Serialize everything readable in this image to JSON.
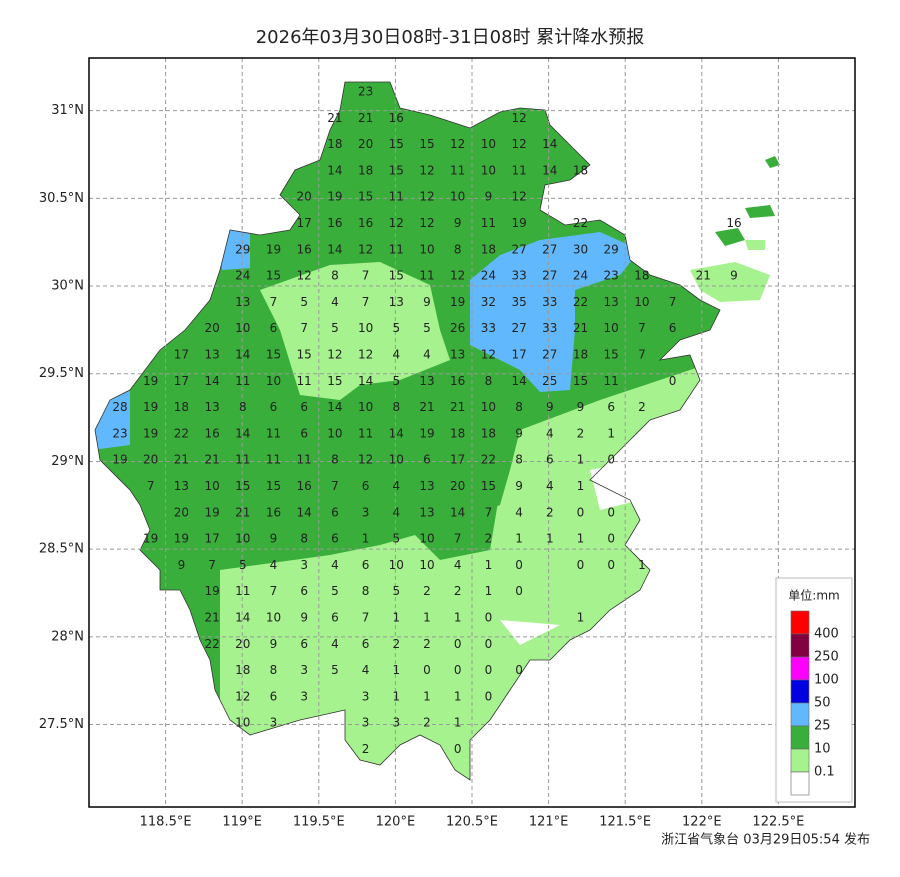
{
  "title": "2026年03月30日08时-31日08时 累计降水预报",
  "footer": "浙江省气象台 03月29日05:54 发布",
  "axes": {
    "xlim": [
      118.0,
      123.0
    ],
    "ylim": [
      27.03,
      31.3
    ],
    "xticks": [
      {
        "value": 118.5,
        "label": "118.5°E"
      },
      {
        "value": 119,
        "label": "119°E"
      },
      {
        "value": 119.5,
        "label": "119.5°E"
      },
      {
        "value": 120,
        "label": "120°E"
      },
      {
        "value": 120.5,
        "label": "120.5°E"
      },
      {
        "value": 121,
        "label": "121°E"
      },
      {
        "value": 121.5,
        "label": "121.5°E"
      },
      {
        "value": 122,
        "label": "122°E"
      },
      {
        "value": 122.5,
        "label": "122.5°E"
      }
    ],
    "yticks": [
      {
        "value": 27.5,
        "label": "27.5°N"
      },
      {
        "value": 28,
        "label": "28°N"
      },
      {
        "value": 28.5,
        "label": "28.5°N"
      },
      {
        "value": 29,
        "label": "29°N"
      },
      {
        "value": 29.5,
        "label": "29.5°N"
      },
      {
        "value": 30,
        "label": "30°N"
      },
      {
        "value": 30.5,
        "label": "30.5°N"
      },
      {
        "value": 31,
        "label": "31°N"
      }
    ]
  },
  "rows": [
    [
      null,
      null,
      null,
      null,
      null,
      null,
      null,
      null,
      23,
      null,
      null,
      null,
      null,
      null,
      null,
      null,
      null,
      null,
      null,
      null,
      null
    ],
    [
      null,
      null,
      null,
      null,
      null,
      null,
      null,
      21,
      21,
      16,
      null,
      null,
      null,
      12,
      null,
      null,
      null,
      null,
      null,
      null,
      null
    ],
    [
      null,
      null,
      null,
      null,
      null,
      null,
      null,
      18,
      20,
      15,
      15,
      12,
      10,
      12,
      14,
      null,
      null,
      null,
      null,
      null,
      null
    ],
    [
      null,
      null,
      null,
      null,
      null,
      null,
      null,
      14,
      18,
      15,
      12,
      11,
      10,
      11,
      14,
      18,
      null,
      null,
      null,
      null,
      null
    ],
    [
      null,
      null,
      null,
      null,
      null,
      null,
      20,
      19,
      15,
      11,
      12,
      10,
      9,
      12,
      null,
      null,
      null,
      null,
      null,
      null,
      null
    ],
    [
      null,
      null,
      null,
      null,
      null,
      null,
      17,
      16,
      16,
      12,
      12,
      9,
      11,
      19,
      null,
      22,
      null,
      null,
      null,
      null,
      16
    ],
    [
      null,
      null,
      null,
      null,
      29,
      19,
      16,
      14,
      12,
      11,
      10,
      8,
      18,
      27,
      27,
      30,
      29,
      null,
      null,
      null,
      null
    ],
    [
      null,
      null,
      null,
      null,
      24,
      15,
      12,
      8,
      7,
      15,
      11,
      12,
      24,
      33,
      27,
      24,
      23,
      18,
      null,
      21,
      9
    ],
    [
      null,
      null,
      null,
      null,
      13,
      7,
      5,
      4,
      7,
      13,
      9,
      19,
      32,
      35,
      33,
      22,
      13,
      10,
      7,
      null,
      null
    ],
    [
      null,
      null,
      null,
      20,
      10,
      6,
      7,
      5,
      10,
      5,
      5,
      26,
      33,
      27,
      33,
      21,
      10,
      7,
      6,
      null,
      null
    ],
    [
      null,
      null,
      17,
      13,
      14,
      15,
      15,
      12,
      12,
      4,
      4,
      13,
      12,
      17,
      27,
      18,
      15,
      7,
      null,
      null,
      null
    ],
    [
      null,
      19,
      17,
      14,
      11,
      10,
      11,
      15,
      14,
      5,
      13,
      16,
      8,
      14,
      25,
      15,
      11,
      null,
      0,
      null,
      null
    ],
    [
      28,
      19,
      18,
      13,
      8,
      6,
      6,
      14,
      10,
      8,
      21,
      21,
      10,
      8,
      9,
      9,
      6,
      2,
      null,
      null,
      null
    ],
    [
      23,
      19,
      22,
      16,
      14,
      11,
      6,
      10,
      11,
      14,
      19,
      18,
      18,
      9,
      4,
      2,
      1,
      null,
      null,
      null,
      null
    ],
    [
      19,
      20,
      21,
      21,
      11,
      11,
      11,
      8,
      12,
      10,
      6,
      17,
      22,
      8,
      6,
      1,
      0,
      null,
      null,
      null,
      null
    ],
    [
      null,
      7,
      13,
      10,
      15,
      15,
      16,
      7,
      6,
      4,
      13,
      20,
      15,
      9,
      4,
      1,
      null,
      null,
      null,
      null,
      null
    ],
    [
      null,
      null,
      20,
      19,
      21,
      16,
      14,
      6,
      3,
      4,
      13,
      14,
      7,
      4,
      2,
      0,
      0,
      null,
      null,
      null,
      null
    ],
    [
      null,
      19,
      19,
      17,
      10,
      9,
      8,
      6,
      1,
      5,
      10,
      7,
      2,
      1,
      1,
      1,
      0,
      null,
      null,
      null,
      null
    ],
    [
      null,
      null,
      9,
      7,
      5,
      4,
      3,
      4,
      6,
      10,
      10,
      4,
      1,
      0,
      null,
      0,
      0,
      1,
      null,
      null,
      null
    ],
    [
      null,
      null,
      null,
      19,
      11,
      7,
      6,
      5,
      8,
      5,
      2,
      2,
      1,
      0,
      null,
      null,
      null,
      null,
      null,
      null,
      null
    ],
    [
      null,
      null,
      null,
      21,
      14,
      10,
      9,
      6,
      7,
      1,
      1,
      1,
      0,
      null,
      null,
      1,
      null,
      null,
      null,
      null,
      null
    ],
    [
      null,
      null,
      null,
      22,
      20,
      9,
      6,
      4,
      6,
      2,
      2,
      0,
      0,
      null,
      null,
      null,
      null,
      null,
      null,
      null,
      null
    ],
    [
      null,
      null,
      null,
      null,
      18,
      8,
      3,
      5,
      4,
      1,
      0,
      0,
      0,
      0,
      null,
      null,
      null,
      null,
      null,
      null,
      null
    ],
    [
      null,
      null,
      null,
      null,
      12,
      6,
      3,
      null,
      3,
      1,
      1,
      1,
      0,
      null,
      null,
      null,
      null,
      null,
      null,
      null,
      null
    ],
    [
      null,
      null,
      null,
      null,
      10,
      3,
      null,
      null,
      3,
      3,
      2,
      1,
      null,
      null,
      null,
      null,
      null,
      null,
      null,
      null,
      null
    ],
    [
      null,
      null,
      null,
      null,
      null,
      null,
      null,
      null,
      2,
      null,
      null,
      0,
      null,
      null,
      null,
      null,
      null,
      null,
      null,
      null,
      null
    ]
  ],
  "legend": {
    "title": "单位:mm",
    "levels": [
      400,
      250,
      100,
      50,
      25,
      10,
      0.1
    ],
    "colors": [
      "#ff0000",
      "#800040",
      "#ff00ff",
      "#0000e0",
      "#62b8fc",
      "#3aae3a",
      "#a6f28f",
      "#ffffff"
    ]
  }
}
